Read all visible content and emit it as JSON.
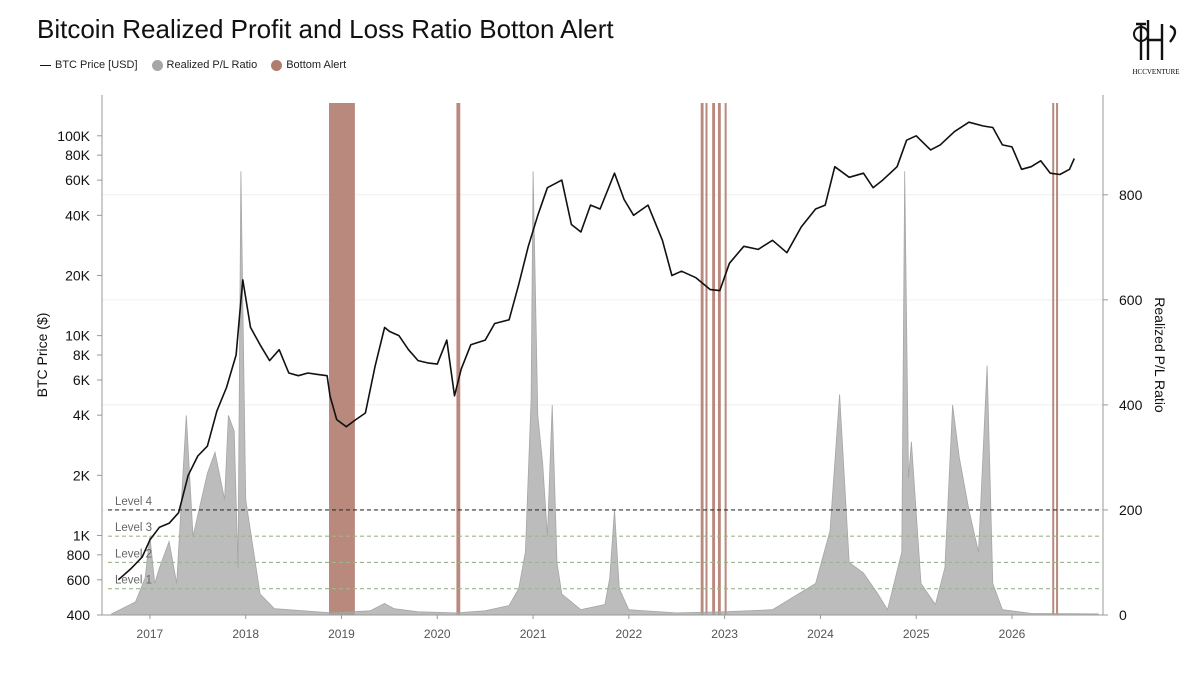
{
  "title": "Bitcoin Realized Profit and Loss Ratio Botton Alert",
  "logo_text": "HCCVENTURE",
  "legend": [
    {
      "label": "BTC Price [USD]",
      "kind": "line",
      "color": "#111111"
    },
    {
      "label": "Realized P/L Ratio",
      "kind": "dot",
      "color": "#a6a6a6"
    },
    {
      "label": "Bottom Alert",
      "kind": "dot",
      "color": "#b07c6e"
    }
  ],
  "chart_data": {
    "type": "line",
    "title": "Bitcoin Realized Profit and Loss Ratio Botton Alert",
    "left_axis": {
      "label": "BTC Price ($)",
      "scale": "log",
      "range": [
        400,
        160000
      ],
      "ticks": [
        400,
        600,
        800,
        1000,
        2000,
        4000,
        6000,
        8000,
        10000,
        20000,
        40000,
        60000,
        80000,
        100000
      ],
      "tick_labels": [
        "400",
        "600",
        "800",
        "1K",
        "2K",
        "4K",
        "6K",
        "8K",
        "10K",
        "20K",
        "40K",
        "60K",
        "80K",
        "100K"
      ]
    },
    "right_axis": {
      "label": "Realized P/L Ratio",
      "scale": "linear",
      "range": [
        0,
        990
      ],
      "ticks": [
        0,
        200,
        400,
        600,
        800
      ],
      "tick_labels": [
        "0",
        "200",
        "400",
        "600",
        "800"
      ]
    },
    "x_axis": {
      "range": [
        2016.5,
        2026.95
      ],
      "ticks": [
        2017,
        2018,
        2019,
        2020,
        2021,
        2022,
        2023,
        2024,
        2025,
        2026
      ],
      "tick_labels": [
        "2017",
        "2018",
        "2019",
        "2020",
        "2021",
        "2022",
        "2023",
        "2024",
        "2025",
        "2026"
      ]
    },
    "grid": true,
    "levels": [
      {
        "label": "Level 4",
        "value": 200,
        "color": "#333333"
      },
      {
        "label": "Level 3",
        "value": 150,
        "color": "#9db58c"
      },
      {
        "label": "Level 2",
        "value": 100,
        "color": "#9db58c"
      },
      {
        "label": "Level 1",
        "value": 50,
        "color": "#9db58c"
      }
    ],
    "series": [
      {
        "name": "BTC Price [USD]",
        "axis": "left",
        "color": "#111111",
        "points": [
          [
            2016.67,
            600
          ],
          [
            2016.8,
            680
          ],
          [
            2016.92,
            780
          ],
          [
            2017.0,
            950
          ],
          [
            2017.1,
            1100
          ],
          [
            2017.2,
            1150
          ],
          [
            2017.3,
            1300
          ],
          [
            2017.4,
            2000
          ],
          [
            2017.5,
            2500
          ],
          [
            2017.6,
            2800
          ],
          [
            2017.7,
            4200
          ],
          [
            2017.8,
            5500
          ],
          [
            2017.9,
            8000
          ],
          [
            2017.95,
            15000
          ],
          [
            2017.97,
            19000
          ],
          [
            2018.05,
            11000
          ],
          [
            2018.15,
            9000
          ],
          [
            2018.25,
            7500
          ],
          [
            2018.35,
            8500
          ],
          [
            2018.45,
            6500
          ],
          [
            2018.55,
            6300
          ],
          [
            2018.65,
            6500
          ],
          [
            2018.75,
            6400
          ],
          [
            2018.85,
            6300
          ],
          [
            2018.88,
            5000
          ],
          [
            2018.95,
            3800
          ],
          [
            2019.05,
            3500
          ],
          [
            2019.15,
            3800
          ],
          [
            2019.25,
            4100
          ],
          [
            2019.35,
            7000
          ],
          [
            2019.45,
            11000
          ],
          [
            2019.5,
            10500
          ],
          [
            2019.6,
            10000
          ],
          [
            2019.7,
            8500
          ],
          [
            2019.8,
            7500
          ],
          [
            2019.9,
            7300
          ],
          [
            2020.0,
            7200
          ],
          [
            2020.1,
            9500
          ],
          [
            2020.18,
            5000
          ],
          [
            2020.25,
            6800
          ],
          [
            2020.35,
            9000
          ],
          [
            2020.5,
            9500
          ],
          [
            2020.6,
            11500
          ],
          [
            2020.75,
            12000
          ],
          [
            2020.85,
            18000
          ],
          [
            2020.95,
            28000
          ],
          [
            2021.05,
            40000
          ],
          [
            2021.15,
            55000
          ],
          [
            2021.3,
            60000
          ],
          [
            2021.4,
            36000
          ],
          [
            2021.5,
            33000
          ],
          [
            2021.6,
            45000
          ],
          [
            2021.7,
            43000
          ],
          [
            2021.85,
            65000
          ],
          [
            2021.95,
            48000
          ],
          [
            2022.05,
            40000
          ],
          [
            2022.2,
            45000
          ],
          [
            2022.35,
            30000
          ],
          [
            2022.45,
            20000
          ],
          [
            2022.55,
            21000
          ],
          [
            2022.7,
            19500
          ],
          [
            2022.85,
            17000
          ],
          [
            2022.95,
            16800
          ],
          [
            2023.05,
            23000
          ],
          [
            2023.2,
            28000
          ],
          [
            2023.35,
            27000
          ],
          [
            2023.5,
            30000
          ],
          [
            2023.65,
            26000
          ],
          [
            2023.8,
            35000
          ],
          [
            2023.95,
            43000
          ],
          [
            2024.05,
            45000
          ],
          [
            2024.15,
            70000
          ],
          [
            2024.3,
            62000
          ],
          [
            2024.45,
            65000
          ],
          [
            2024.55,
            55000
          ],
          [
            2024.65,
            60000
          ],
          [
            2024.8,
            70000
          ],
          [
            2024.9,
            95000
          ],
          [
            2025.0,
            100000
          ],
          [
            2025.15,
            85000
          ],
          [
            2025.25,
            90000
          ],
          [
            2025.4,
            105000
          ],
          [
            2025.55,
            117000
          ],
          [
            2025.7,
            112000
          ],
          [
            2025.8,
            110000
          ],
          [
            2025.9,
            90000
          ],
          [
            2026.0,
            88000
          ],
          [
            2026.1,
            68000
          ],
          [
            2026.2,
            70000
          ],
          [
            2026.3,
            75000
          ],
          [
            2026.4,
            65000
          ],
          [
            2026.5,
            64000
          ],
          [
            2026.6,
            68000
          ],
          [
            2026.65,
            77000
          ]
        ]
      },
      {
        "name": "Realized P/L Ratio",
        "axis": "right",
        "color": "#a6a6a6",
        "type": "area",
        "points": [
          [
            2016.6,
            2
          ],
          [
            2016.85,
            25
          ],
          [
            2016.95,
            70
          ],
          [
            2017.0,
            150
          ],
          [
            2017.05,
            60
          ],
          [
            2017.1,
            90
          ],
          [
            2017.2,
            140
          ],
          [
            2017.28,
            60
          ],
          [
            2017.38,
            380
          ],
          [
            2017.45,
            150
          ],
          [
            2017.55,
            230
          ],
          [
            2017.6,
            270
          ],
          [
            2017.68,
            310
          ],
          [
            2017.78,
            220
          ],
          [
            2017.82,
            380
          ],
          [
            2017.88,
            350
          ],
          [
            2017.92,
            90
          ],
          [
            2017.95,
            845
          ],
          [
            2018.0,
            220
          ],
          [
            2018.05,
            160
          ],
          [
            2018.15,
            40
          ],
          [
            2018.3,
            12
          ],
          [
            2018.6,
            8
          ],
          [
            2018.9,
            4
          ],
          [
            2019.3,
            8
          ],
          [
            2019.45,
            22
          ],
          [
            2019.55,
            12
          ],
          [
            2019.8,
            6
          ],
          [
            2020.2,
            4
          ],
          [
            2020.5,
            8
          ],
          [
            2020.75,
            18
          ],
          [
            2020.85,
            50
          ],
          [
            2020.92,
            120
          ],
          [
            2020.98,
            410
          ],
          [
            2021.0,
            845
          ],
          [
            2021.05,
            380
          ],
          [
            2021.1,
            290
          ],
          [
            2021.15,
            150
          ],
          [
            2021.2,
            400
          ],
          [
            2021.25,
            100
          ],
          [
            2021.3,
            40
          ],
          [
            2021.5,
            10
          ],
          [
            2021.75,
            20
          ],
          [
            2021.8,
            70
          ],
          [
            2021.85,
            200
          ],
          [
            2021.9,
            50
          ],
          [
            2022.0,
            10
          ],
          [
            2022.5,
            4
          ],
          [
            2023.0,
            6
          ],
          [
            2023.5,
            10
          ],
          [
            2023.95,
            60
          ],
          [
            2024.1,
            160
          ],
          [
            2024.2,
            420
          ],
          [
            2024.3,
            100
          ],
          [
            2024.45,
            80
          ],
          [
            2024.6,
            40
          ],
          [
            2024.7,
            10
          ],
          [
            2024.85,
            120
          ],
          [
            2024.88,
            845
          ],
          [
            2024.92,
            260
          ],
          [
            2024.95,
            330
          ],
          [
            2025.05,
            60
          ],
          [
            2025.2,
            20
          ],
          [
            2025.3,
            90
          ],
          [
            2025.38,
            400
          ],
          [
            2025.45,
            300
          ],
          [
            2025.55,
            200
          ],
          [
            2025.65,
            120
          ],
          [
            2025.74,
            475
          ],
          [
            2025.8,
            60
          ],
          [
            2025.9,
            10
          ],
          [
            2026.2,
            3
          ],
          [
            2026.9,
            2
          ]
        ]
      }
    ],
    "bottom_alerts": [
      [
        2018.87,
        2019.14
      ],
      [
        2020.2,
        2020.24
      ],
      [
        2022.75,
        2022.78
      ],
      [
        2022.8,
        2022.82
      ],
      [
        2022.87,
        2022.9
      ],
      [
        2022.93,
        2022.96
      ],
      [
        2023.0,
        2023.02
      ],
      [
        2026.42,
        2026.44
      ],
      [
        2026.46,
        2026.48
      ]
    ]
  }
}
